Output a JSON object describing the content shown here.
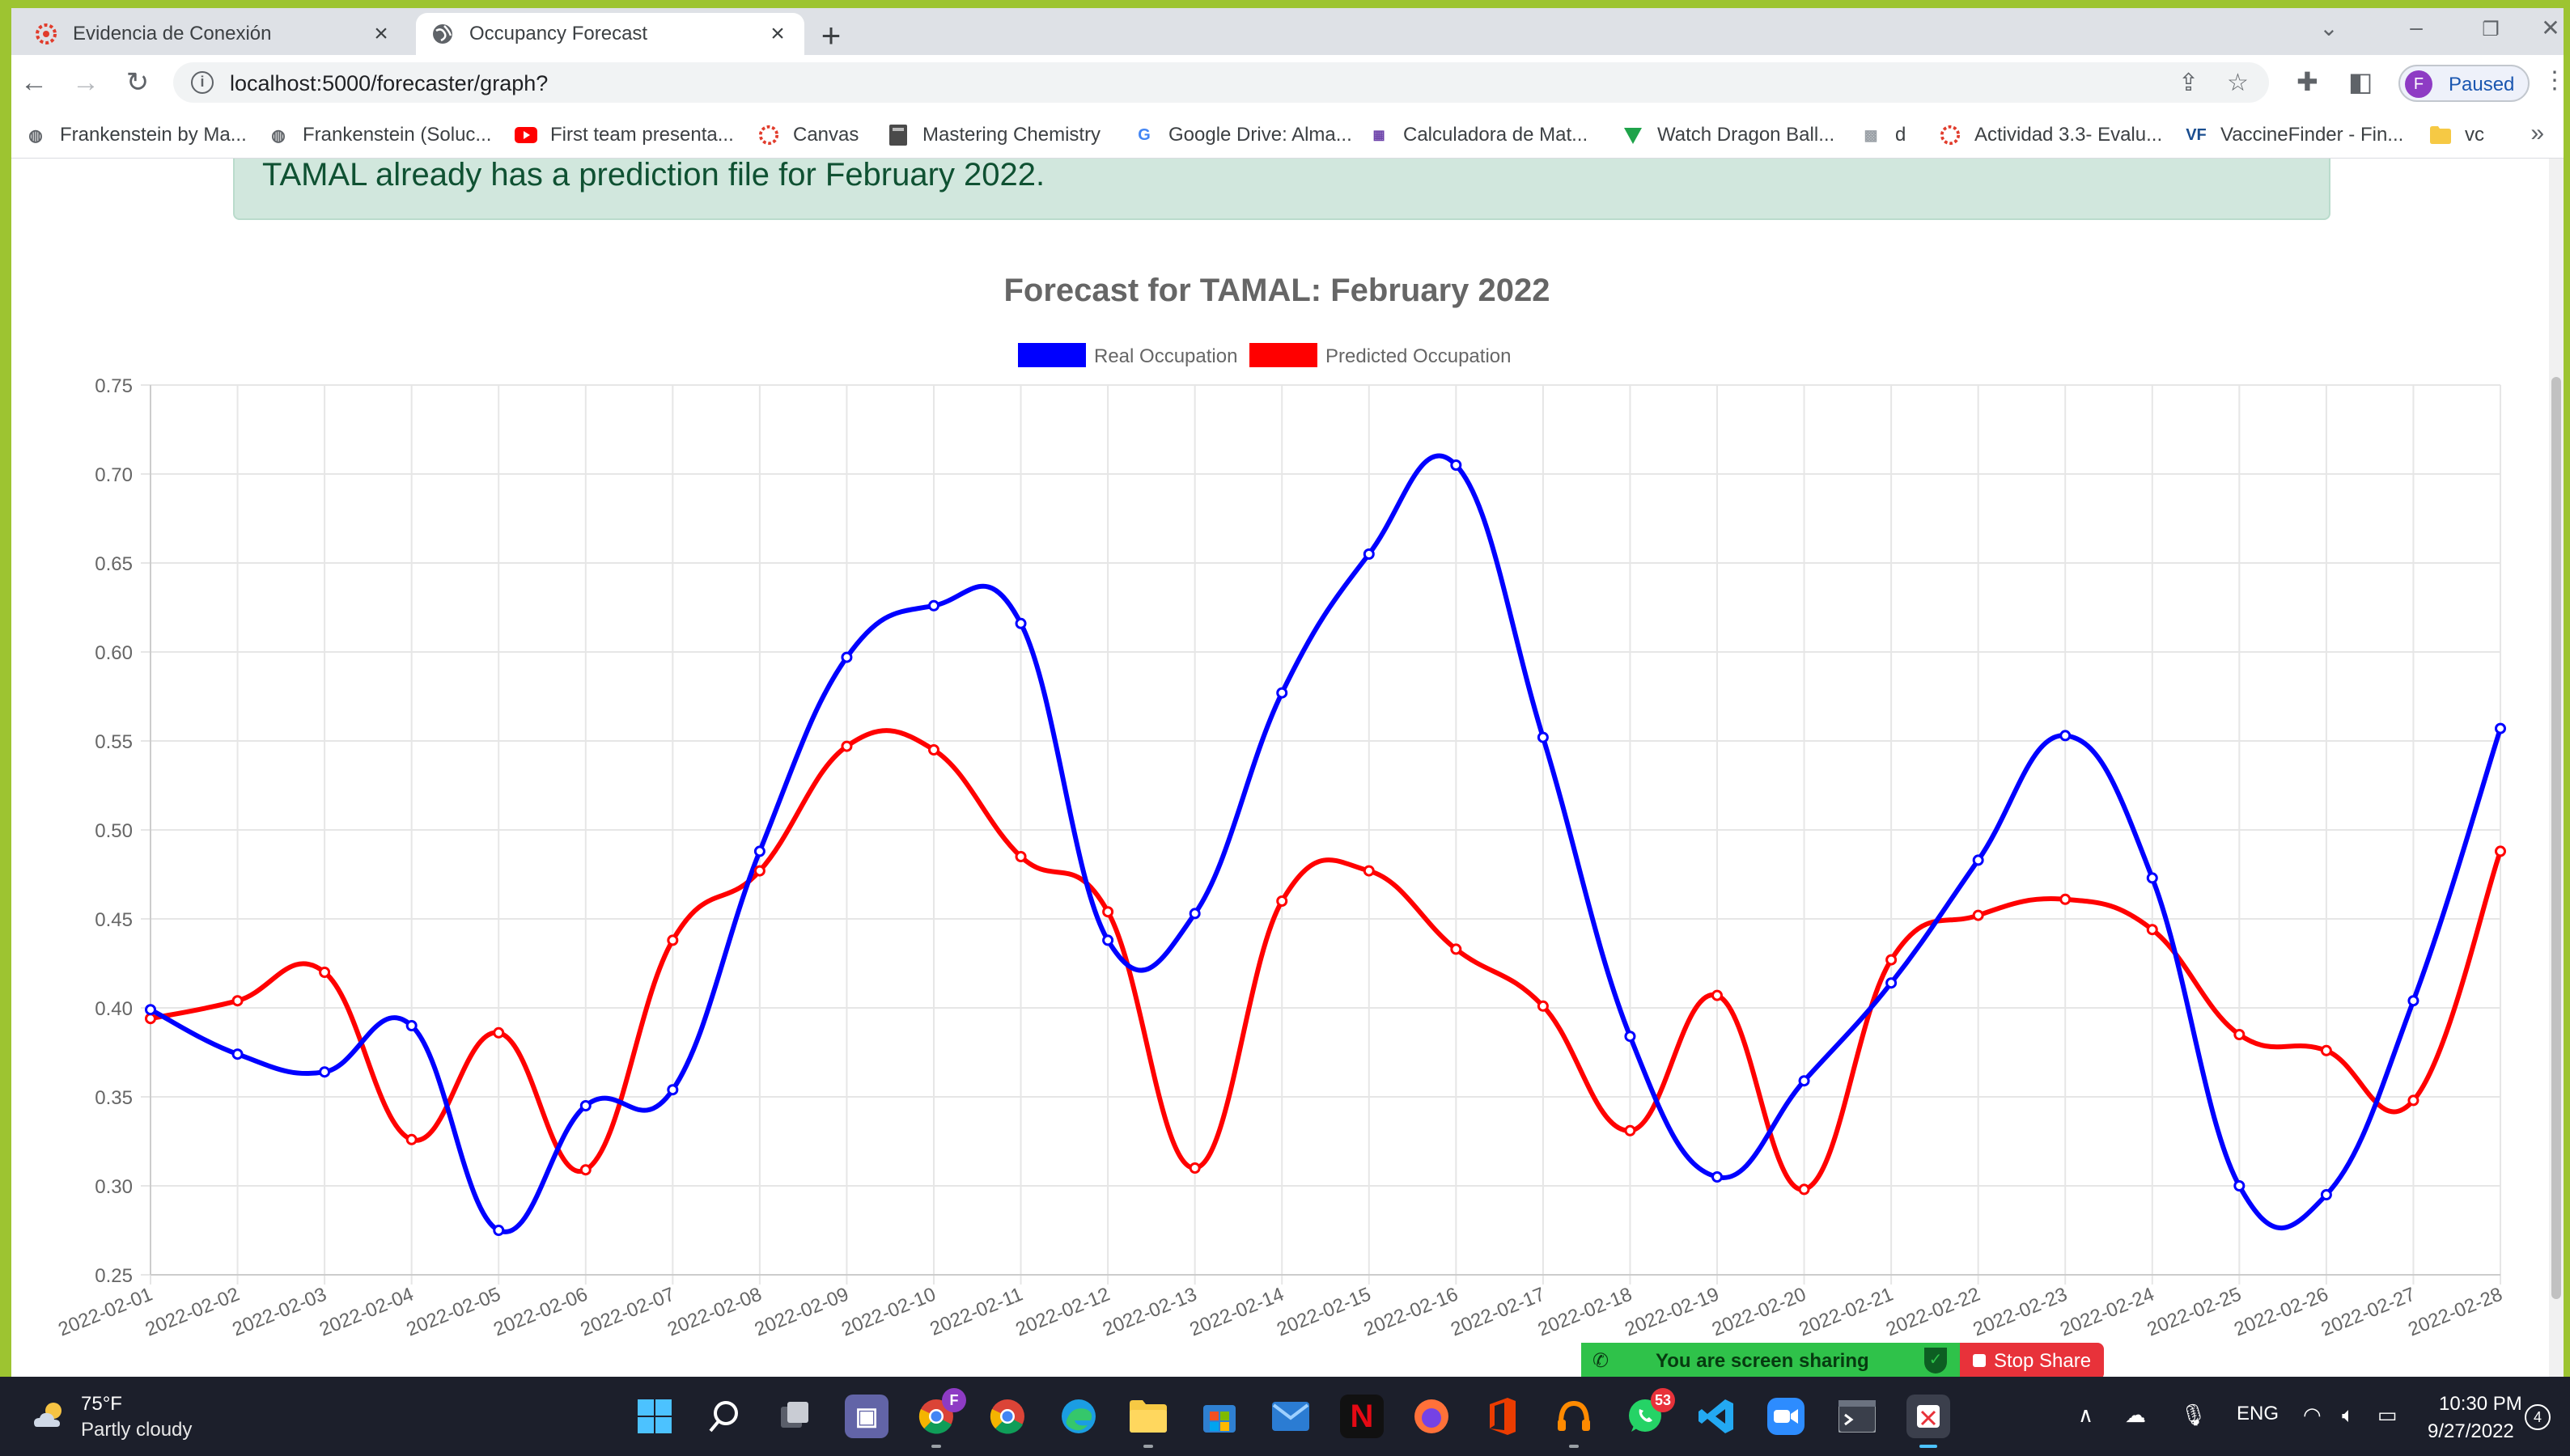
{
  "browser": {
    "tabs": [
      {
        "label": "Evidencia de Conexión",
        "icon": "canvas-icon",
        "active": false
      },
      {
        "label": "Occupancy Forecast",
        "icon": "globe-icon",
        "active": true
      }
    ],
    "url": "localhost:5000/forecaster/graph?",
    "profile_label": "Paused",
    "profile_initial": "F",
    "bookmarks": [
      {
        "label": "Frankenstein by Ma...",
        "icon": "globe-icon"
      },
      {
        "label": "Frankenstein (Soluc...",
        "icon": "globe-icon"
      },
      {
        "label": "First team presenta...",
        "icon": "youtube-icon"
      },
      {
        "label": "Canvas",
        "icon": "canvas-icon"
      },
      {
        "label": "Mastering Chemistry",
        "icon": "book-icon"
      },
      {
        "label": "Google Drive: Alma...",
        "icon": "google-icon"
      },
      {
        "label": "Calculadora de Mat...",
        "icon": "calculator-icon"
      },
      {
        "label": "Watch Dragon Ball...",
        "icon": "tv-icon"
      },
      {
        "label": "d",
        "icon": "image-icon"
      },
      {
        "label": "Actividad 3.3- Evalu...",
        "icon": "canvas-icon"
      },
      {
        "label": "VaccineFinder - Fin...",
        "icon": "vf-icon"
      },
      {
        "label": "vc",
        "icon": "folder-icon"
      }
    ]
  },
  "page": {
    "alert_text": "TAMAL already has a prediction file for February 2022."
  },
  "chart_data": {
    "type": "line",
    "title": "Forecast for TAMAL: February 2022",
    "x": [
      "2022-02-01",
      "2022-02-02",
      "2022-02-03",
      "2022-02-04",
      "2022-02-05",
      "2022-02-06",
      "2022-02-07",
      "2022-02-08",
      "2022-02-09",
      "2022-02-10",
      "2022-02-11",
      "2022-02-12",
      "2022-02-13",
      "2022-02-14",
      "2022-02-15",
      "2022-02-16",
      "2022-02-17",
      "2022-02-18",
      "2022-02-19",
      "2022-02-20",
      "2022-02-21",
      "2022-02-22",
      "2022-02-23",
      "2022-02-24",
      "2022-02-25",
      "2022-02-26",
      "2022-02-27",
      "2022-02-28"
    ],
    "series": [
      {
        "name": "Real Occupation",
        "color": "#0000ff",
        "values": [
          0.399,
          0.374,
          0.364,
          0.39,
          0.275,
          0.345,
          0.354,
          0.488,
          0.597,
          0.626,
          0.616,
          0.438,
          0.453,
          0.577,
          0.655,
          0.705,
          0.552,
          0.384,
          0.305,
          0.359,
          0.414,
          0.483,
          0.553,
          0.473,
          0.3,
          0.295,
          0.404,
          0.557
        ]
      },
      {
        "name": "Predicted Occupation",
        "color": "#ff0000",
        "values": [
          0.394,
          0.404,
          0.42,
          0.326,
          0.386,
          0.309,
          0.438,
          0.477,
          0.547,
          0.545,
          0.485,
          0.454,
          0.31,
          0.46,
          0.477,
          0.433,
          0.401,
          0.331,
          0.407,
          0.298,
          0.427,
          0.452,
          0.461,
          0.444,
          0.385,
          0.376,
          0.348,
          0.488
        ]
      }
    ],
    "ylim": [
      0.25,
      0.75
    ],
    "yticks": [
      "0.25",
      "0.30",
      "0.35",
      "0.40",
      "0.45",
      "0.50",
      "0.55",
      "0.60",
      "0.65",
      "0.70",
      "0.75"
    ],
    "grid": true,
    "legend": "top-center"
  },
  "screenshare": {
    "status": "You are screen sharing",
    "stop_label": "Stop Share"
  },
  "taskbar": {
    "weather_temp": "75°F",
    "weather_desc": "Partly cloudy",
    "whatsapp_badge": "53",
    "chrome_badge": "F",
    "language": "ENG",
    "time": "10:30 PM",
    "date": "9/27/2022",
    "notifications": "4"
  }
}
